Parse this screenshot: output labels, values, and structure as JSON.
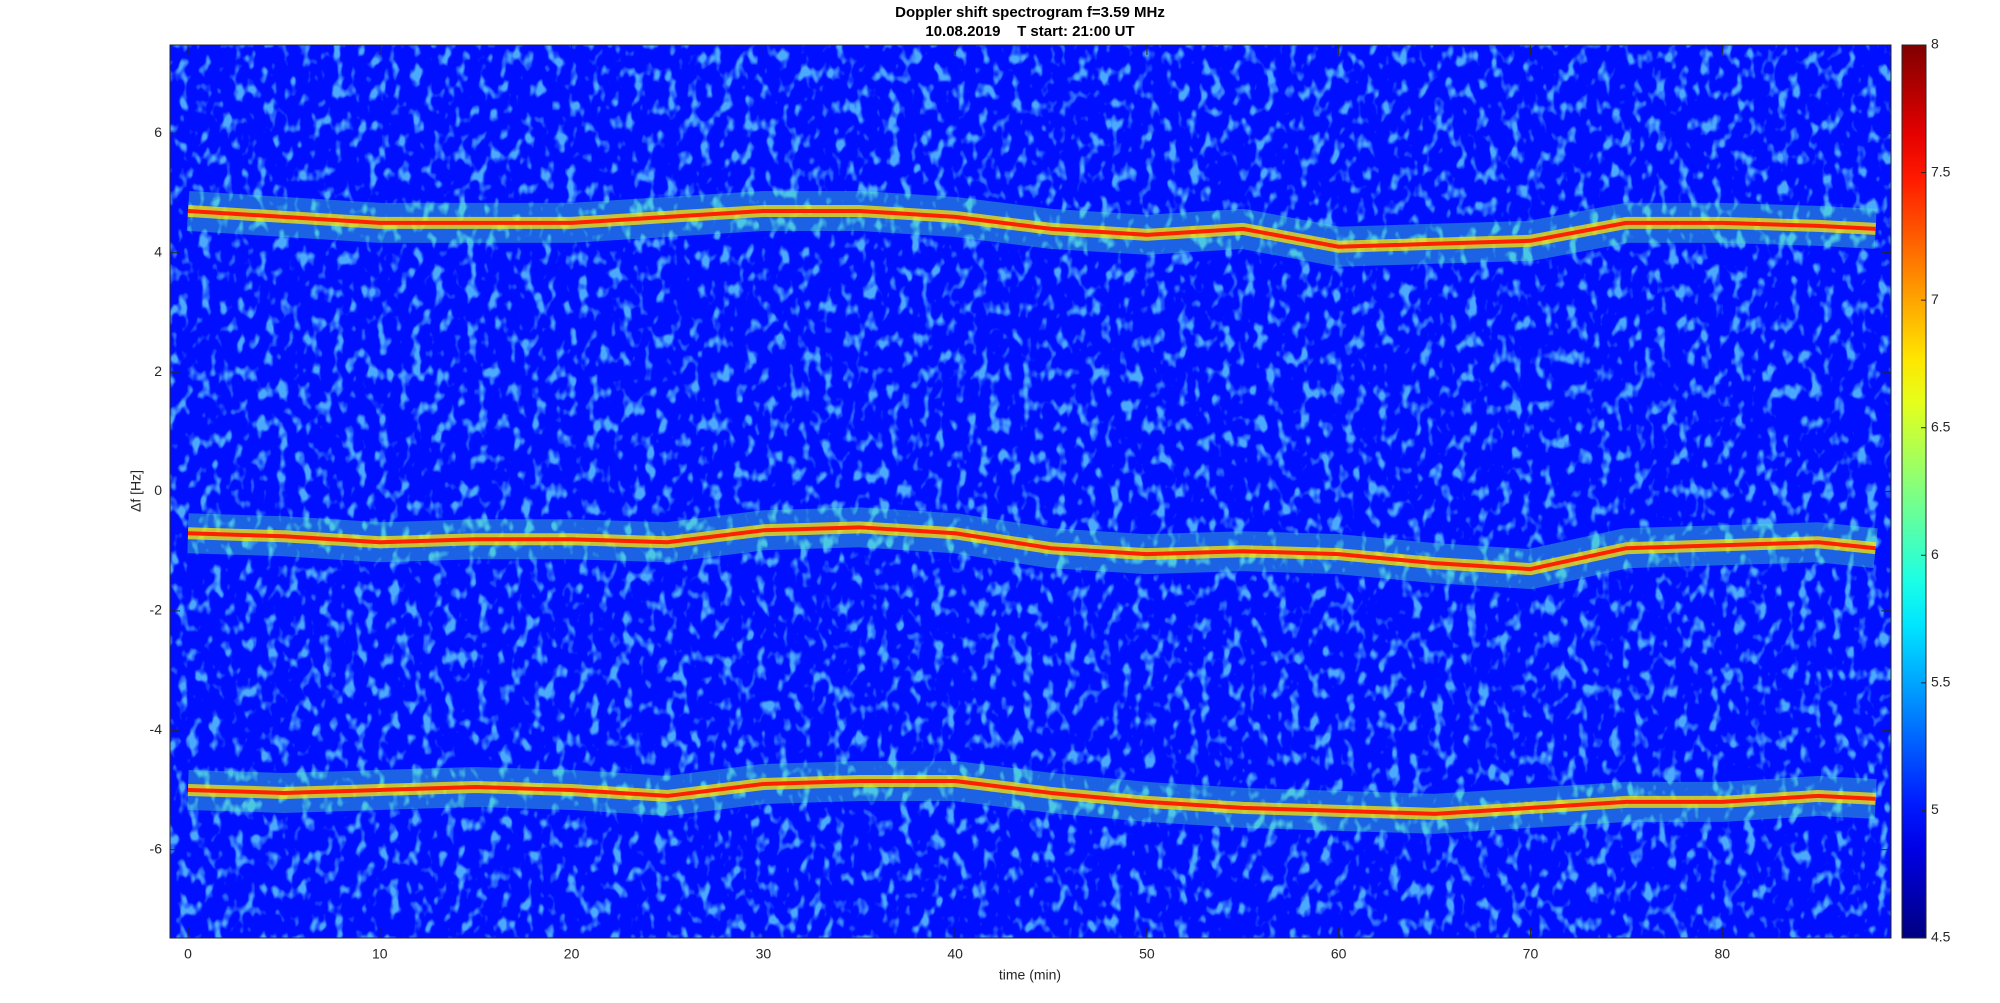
{
  "chart_data": {
    "type": "spectrogram",
    "title": "Doppler shift spectrogram f=3.59 MHz",
    "subtitle": "10.08.2019    T start: 21:00 UT",
    "x_label": "time (min)",
    "y_label": "Δf [Hz]",
    "xlim": [
      -0.94,
      88.8
    ],
    "xticks": [
      0,
      10,
      20,
      30,
      40,
      50,
      60,
      70,
      80
    ],
    "ylim": [
      -7.48,
      7.48
    ],
    "yticks": [
      -6,
      -4,
      -2,
      0,
      2,
      4,
      6
    ],
    "colormap": "jet",
    "clim": [
      4.5,
      8
    ],
    "cticks": [
      4.5,
      5,
      5.5,
      6,
      6.5,
      7,
      7.5,
      8
    ],
    "x": [
      0,
      5,
      10,
      15,
      20,
      25,
      30,
      35,
      40,
      45,
      50,
      55,
      60,
      65,
      70,
      75,
      80,
      85,
      88
    ],
    "series": [
      {
        "color": "#ff2000",
        "values": [
          4.7,
          4.6,
          4.5,
          4.5,
          4.5,
          4.6,
          4.7,
          4.7,
          4.6,
          4.4,
          4.3,
          4.4,
          4.1,
          4.15,
          4.2,
          4.5,
          4.5,
          4.45,
          4.4
        ]
      },
      {
        "color": "#ff2000",
        "values": [
          -0.7,
          -0.75,
          -0.85,
          -0.8,
          -0.8,
          -0.85,
          -0.65,
          -0.6,
          -0.7,
          -0.95,
          -1.05,
          -1.0,
          -1.05,
          -1.2,
          -1.3,
          -0.95,
          -0.9,
          -0.85,
          -0.95
        ]
      },
      {
        "color": "#ff2000",
        "values": [
          -5.0,
          -5.05,
          -5.0,
          -4.95,
          -5.0,
          -5.1,
          -4.9,
          -4.85,
          -4.85,
          -5.05,
          -5.2,
          -5.3,
          -5.35,
          -5.4,
          -5.3,
          -5.2,
          -5.2,
          -5.1,
          -5.15
        ]
      }
    ]
  }
}
